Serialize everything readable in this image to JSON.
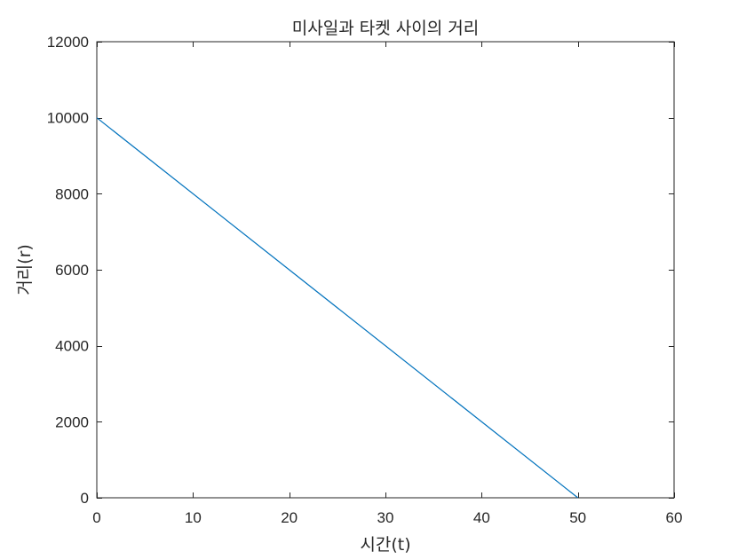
{
  "chart_data": {
    "type": "line",
    "title": "미사일과 타켓 사이의 거리",
    "xlabel": "시간(t)",
    "ylabel": "거리(r)",
    "xlim": [
      0,
      60
    ],
    "ylim": [
      0,
      12000
    ],
    "xticks": [
      "0",
      "10",
      "20",
      "30",
      "40",
      "50",
      "60"
    ],
    "yticks": [
      "0",
      "2000",
      "4000",
      "6000",
      "8000",
      "10000",
      "12000"
    ],
    "grid": false,
    "legend": "none",
    "series": [
      {
        "color": "#0072bd",
        "x": [
          0,
          50
        ],
        "y": [
          10000,
          0
        ]
      }
    ]
  }
}
